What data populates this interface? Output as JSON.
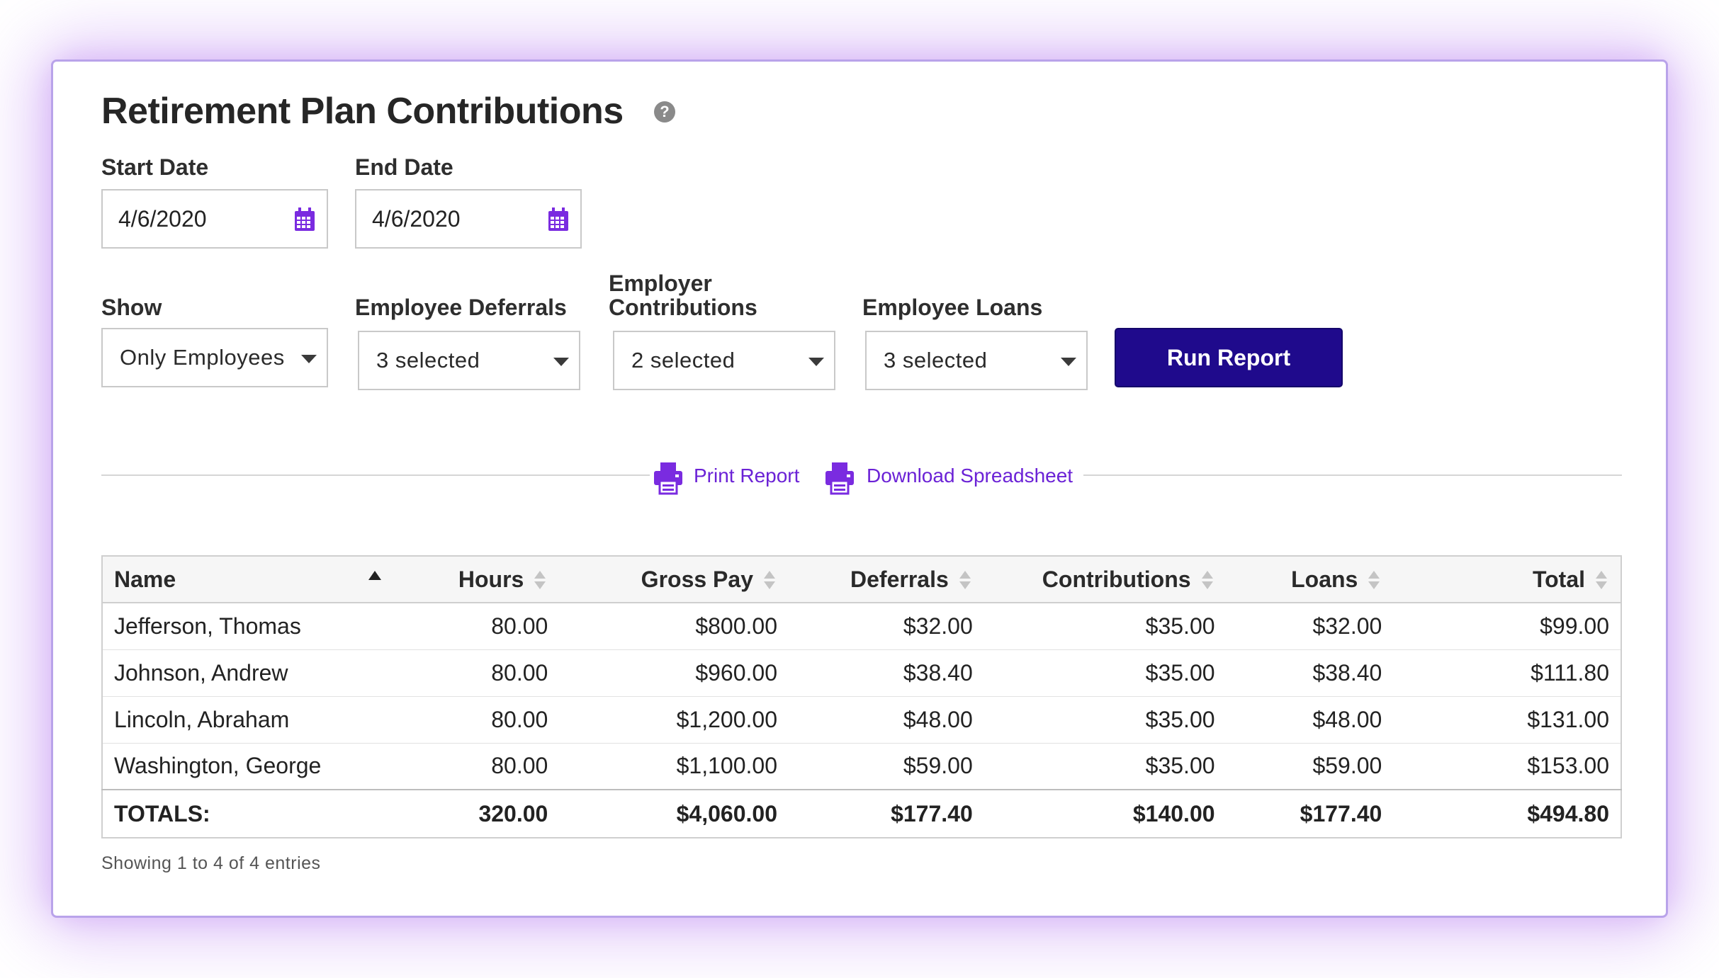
{
  "page": {
    "title": "Retirement Plan Contributions",
    "help_icon": "?"
  },
  "filters": {
    "start_date": {
      "label": "Start Date",
      "value": "4/6/2020",
      "icon": "calendar-icon"
    },
    "end_date": {
      "label": "End Date",
      "value": "4/6/2020",
      "icon": "calendar-icon"
    },
    "show": {
      "label": "Show",
      "value": "Only Employees"
    },
    "employee_deferrals": {
      "label": "Employee Deferrals",
      "value": "3 selected"
    },
    "employer_contributions": {
      "label_line1": "Employer",
      "label_line2": "Contributions",
      "value": "2 selected"
    },
    "employee_loans": {
      "label": "Employee Loans",
      "value": "3 selected"
    },
    "run_button": "Run Report"
  },
  "actions": {
    "print": {
      "label": "Print Report",
      "icon": "printer-icon"
    },
    "download": {
      "label": "Download Spreadsheet",
      "icon": "printer-icon"
    }
  },
  "table": {
    "headers": [
      "Name",
      "Hours",
      "Gross Pay",
      "Deferrals",
      "Contributions",
      "Loans",
      "Total"
    ],
    "rows": [
      [
        "Jefferson, Thomas",
        "80.00",
        "$800.00",
        "$32.00",
        "$35.00",
        "$32.00",
        "$99.00"
      ],
      [
        "Johnson, Andrew",
        "80.00",
        "$960.00",
        "$38.40",
        "$35.00",
        "$38.40",
        "$111.80"
      ],
      [
        "Lincoln, Abraham",
        "80.00",
        "$1,200.00",
        "$48.00",
        "$35.00",
        "$48.00",
        "$131.00"
      ],
      [
        "Washington, George",
        "80.00",
        "$1,100.00",
        "$59.00",
        "$35.00",
        "$59.00",
        "$153.00"
      ]
    ],
    "totals": [
      "TOTALS:",
      "320.00",
      "$4,060.00",
      "$177.40",
      "$140.00",
      "$177.40",
      "$494.80"
    ],
    "sorted_by": "Name",
    "sort_direction": "ascending"
  },
  "footer": {
    "entries_text": "Showing 1 to 4 of 4 entries"
  },
  "colors": {
    "accent": "#6b22d6",
    "button": "#1f0a8c",
    "border": "#b9a3ea"
  }
}
